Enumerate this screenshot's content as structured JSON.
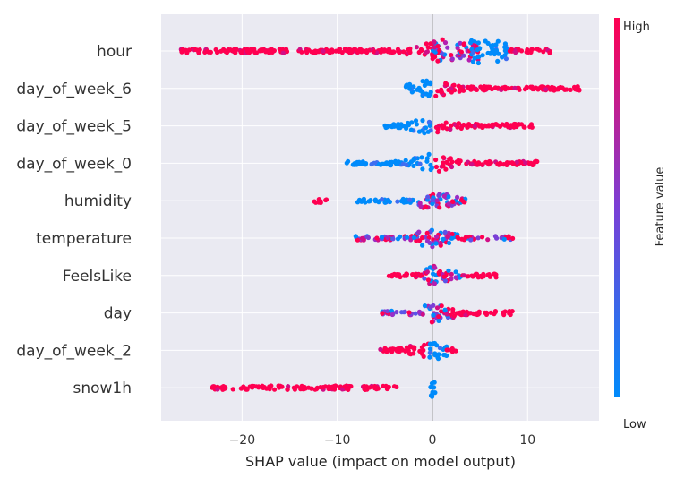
{
  "chart_data": {
    "type": "scatter",
    "subtype": "shap-beeswarm",
    "xlabel": "SHAP value (impact on model output)",
    "xlim": [
      -28.5,
      17.5
    ],
    "xticks": [
      -20,
      -10,
      0,
      10
    ],
    "xtick_labels": [
      "−20",
      "−10",
      "0",
      "10"
    ],
    "grid": true,
    "colorbar": {
      "label": "Feature value",
      "high_label": "High",
      "low_label": "Low",
      "low_color": "#008bfb",
      "high_color": "#ff0051"
    },
    "features": [
      {
        "name": "hour",
        "clusters": [
          {
            "from": -26.5,
            "to": -4.0,
            "color": "high",
            "density": 0.9
          },
          {
            "from": -4.0,
            "to": 0.5,
            "color": "high",
            "density": 0.6
          },
          {
            "from": 0.0,
            "to": 5.0,
            "color": "mixed",
            "density": 1.0
          },
          {
            "from": 4.0,
            "to": 8.0,
            "color": "low",
            "density": 1.0
          },
          {
            "from": 8.0,
            "to": 12.5,
            "color": "high",
            "density": 0.5
          }
        ]
      },
      {
        "name": "day_of_week_6",
        "clusters": [
          {
            "from": -2.8,
            "to": 0.0,
            "color": "low",
            "density": 1.0
          },
          {
            "from": 0.3,
            "to": 15.5,
            "color": "high",
            "density": 0.8
          }
        ]
      },
      {
        "name": "day_of_week_5",
        "clusters": [
          {
            "from": -5.0,
            "to": 0.0,
            "color": "low",
            "density": 0.8
          },
          {
            "from": 0.3,
            "to": 10.5,
            "color": "high",
            "density": 0.7
          }
        ]
      },
      {
        "name": "day_of_week_0",
        "clusters": [
          {
            "from": -9.0,
            "to": 0.0,
            "color": "low",
            "density": 0.7
          },
          {
            "from": 0.3,
            "to": 11.0,
            "color": "high",
            "density": 0.7
          }
        ]
      },
      {
        "name": "humidity",
        "clusters": [
          {
            "from": -12.5,
            "to": -11.0,
            "color": "high",
            "density": 0.3
          },
          {
            "from": -8.0,
            "to": -2.0,
            "color": "low",
            "density": 0.5
          },
          {
            "from": -2.0,
            "to": 3.5,
            "color": "mixed",
            "density": 1.0
          }
        ]
      },
      {
        "name": "temperature",
        "clusters": [
          {
            "from": -8.5,
            "to": -2.0,
            "color": "mixed",
            "density": 0.6
          },
          {
            "from": -2.0,
            "to": 3.0,
            "color": "mixed",
            "density": 1.0
          },
          {
            "from": 3.0,
            "to": 8.5,
            "color": "mixed",
            "density": 0.4
          }
        ]
      },
      {
        "name": "FeelsLike",
        "clusters": [
          {
            "from": -4.8,
            "to": -1.0,
            "color": "high",
            "density": 0.7
          },
          {
            "from": -1.0,
            "to": 3.0,
            "color": "mixed",
            "density": 1.0
          },
          {
            "from": 3.0,
            "to": 6.8,
            "color": "high",
            "density": 0.5
          }
        ]
      },
      {
        "name": "day",
        "clusters": [
          {
            "from": -5.5,
            "to": -1.0,
            "color": "mixed",
            "density": 0.6
          },
          {
            "from": -1.0,
            "to": 2.5,
            "color": "mixed",
            "density": 1.0
          },
          {
            "from": 2.5,
            "to": 8.5,
            "color": "high",
            "density": 0.6
          }
        ]
      },
      {
        "name": "day_of_week_2",
        "clusters": [
          {
            "from": -5.5,
            "to": -0.3,
            "color": "high",
            "density": 0.8
          },
          {
            "from": -0.3,
            "to": 1.5,
            "color": "low",
            "density": 1.0
          },
          {
            "from": 1.5,
            "to": 2.5,
            "color": "high",
            "density": 0.3
          }
        ]
      },
      {
        "name": "snow1h",
        "clusters": [
          {
            "from": -23.5,
            "to": -3.5,
            "color": "high",
            "density": 0.6
          },
          {
            "from": -0.2,
            "to": 0.3,
            "color": "low",
            "density": 1.0
          }
        ]
      }
    ]
  }
}
